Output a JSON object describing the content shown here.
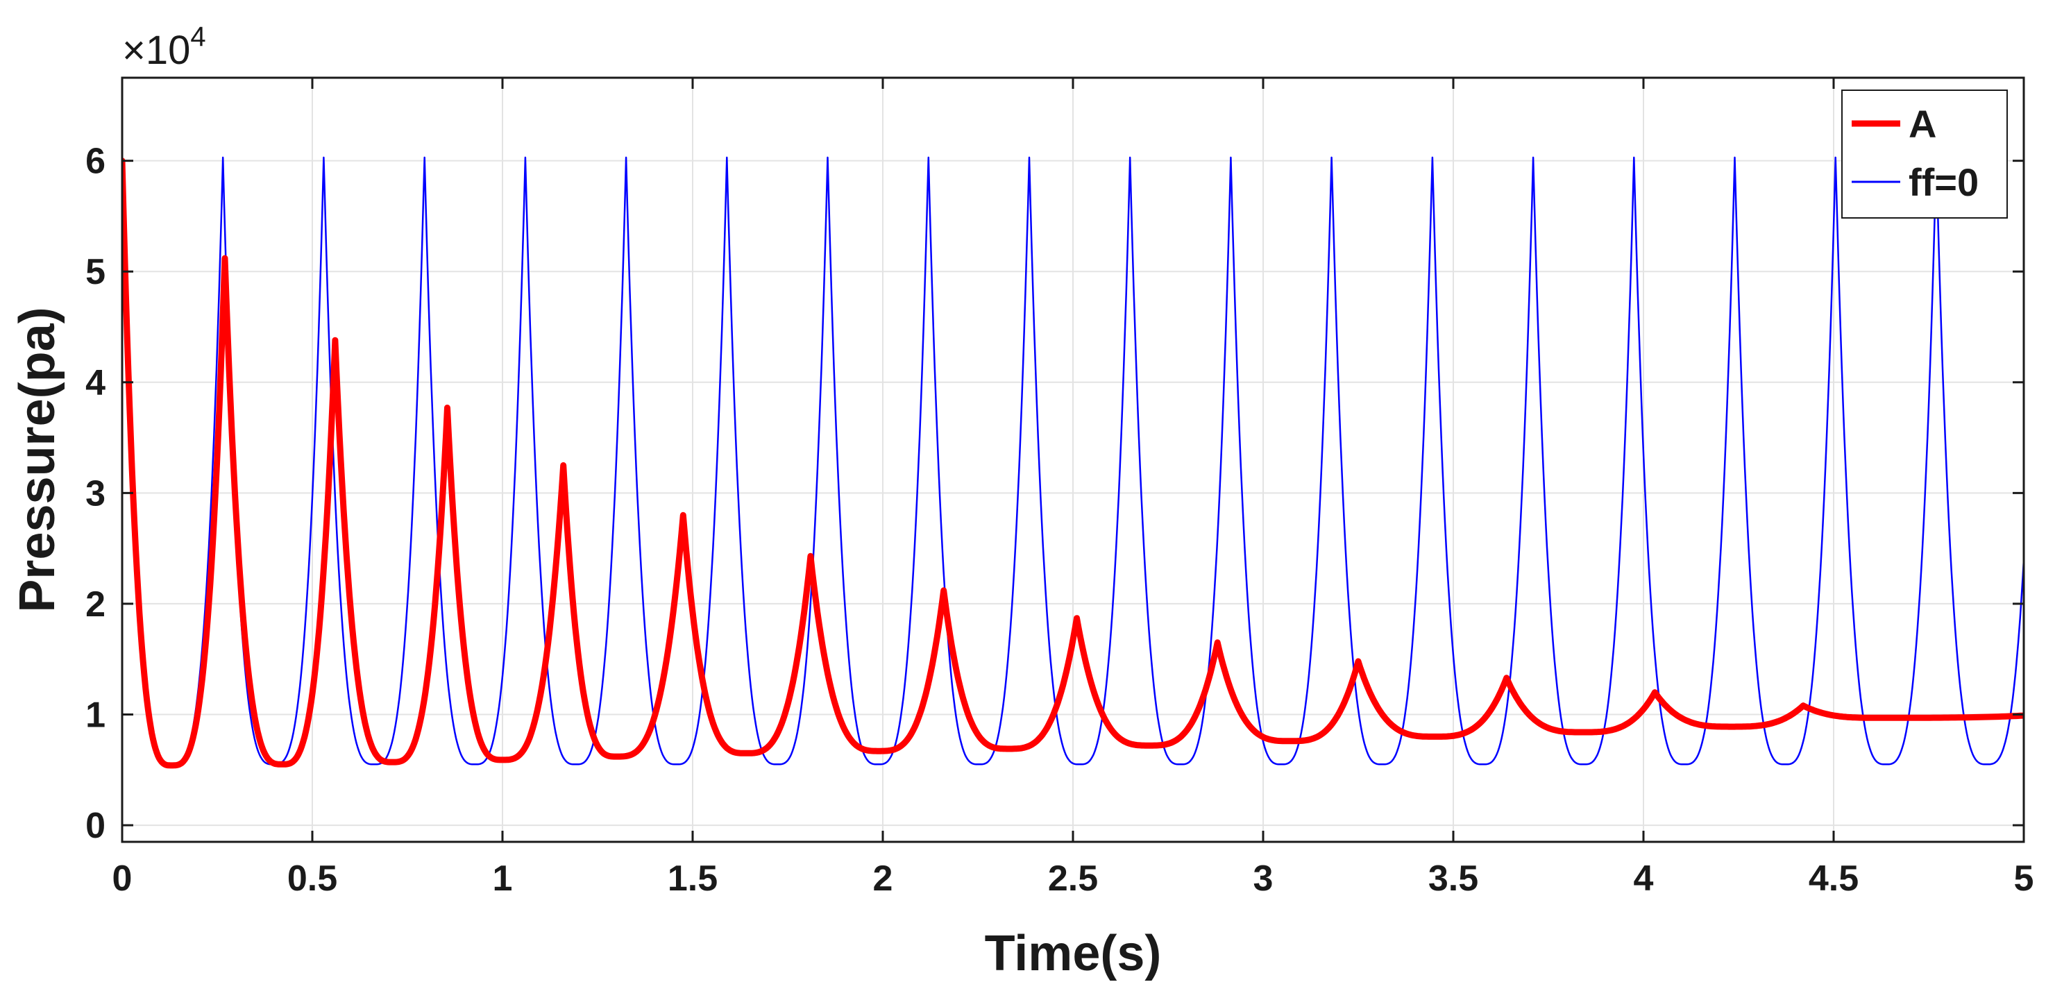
{
  "chart_data": {
    "type": "line",
    "title": "",
    "xlabel": "Time(s)",
    "ylabel": "Pressure(pa)",
    "y_scale_label": {
      "times": "×",
      "base": "10",
      "exponent": "4"
    },
    "xlim": [
      0,
      5
    ],
    "ylim": [
      -1500,
      67500
    ],
    "grid": true,
    "legend_position": "top-right",
    "xticks": [
      0,
      0.5,
      1,
      1.5,
      2,
      2.5,
      3,
      3.5,
      4,
      4.5,
      5
    ],
    "xtick_labels": [
      "0",
      "0.5",
      "1",
      "1.5",
      "2",
      "2.5",
      "3",
      "3.5",
      "4",
      "4.5",
      "5"
    ],
    "yticks": [
      0,
      10000,
      20000,
      30000,
      40000,
      50000,
      60000
    ],
    "ytick_labels": [
      "0",
      "1",
      "2",
      "3",
      "4",
      "5",
      "6"
    ],
    "series": [
      {
        "name": "A",
        "color": "#ff0000",
        "style": "thick",
        "initial": 60000,
        "peaks": [
          {
            "t": 0.27,
            "p": 51200
          },
          {
            "t": 0.56,
            "p": 43800
          },
          {
            "t": 0.855,
            "p": 37700
          },
          {
            "t": 1.16,
            "p": 32500
          },
          {
            "t": 1.475,
            "p": 28000
          },
          {
            "t": 1.81,
            "p": 24300
          },
          {
            "t": 2.16,
            "p": 21200
          },
          {
            "t": 2.51,
            "p": 18700
          },
          {
            "t": 2.88,
            "p": 16500
          },
          {
            "t": 3.25,
            "p": 14800
          },
          {
            "t": 3.64,
            "p": 13300
          },
          {
            "t": 4.03,
            "p": 12000
          },
          {
            "t": 4.42,
            "p": 10800
          }
        ],
        "troughs": [
          {
            "t": 0.13,
            "p": 5400
          },
          {
            "t": 0.42,
            "p": 5500
          },
          {
            "t": 0.71,
            "p": 5700
          },
          {
            "t": 1.0,
            "p": 5900
          },
          {
            "t": 1.3,
            "p": 6200
          },
          {
            "t": 1.64,
            "p": 6500
          },
          {
            "t": 1.99,
            "p": 6700
          },
          {
            "t": 2.33,
            "p": 6900
          },
          {
            "t": 2.7,
            "p": 7200
          },
          {
            "t": 3.07,
            "p": 7600
          },
          {
            "t": 3.45,
            "p": 8000
          },
          {
            "t": 3.84,
            "p": 8400
          },
          {
            "t": 4.23,
            "p": 8900
          },
          {
            "t": 4.62,
            "p": 9700
          }
        ],
        "final": {
          "t": 5.0,
          "p": 9900
        }
      },
      {
        "name": "ff=0",
        "color": "#0000ff",
        "style": "thin",
        "initial": 60000,
        "period": 0.265,
        "first_peak": 0.265,
        "peak": 60300,
        "trough": 5500,
        "end": {
          "t": 5.0,
          "p": 24000
        }
      }
    ]
  }
}
